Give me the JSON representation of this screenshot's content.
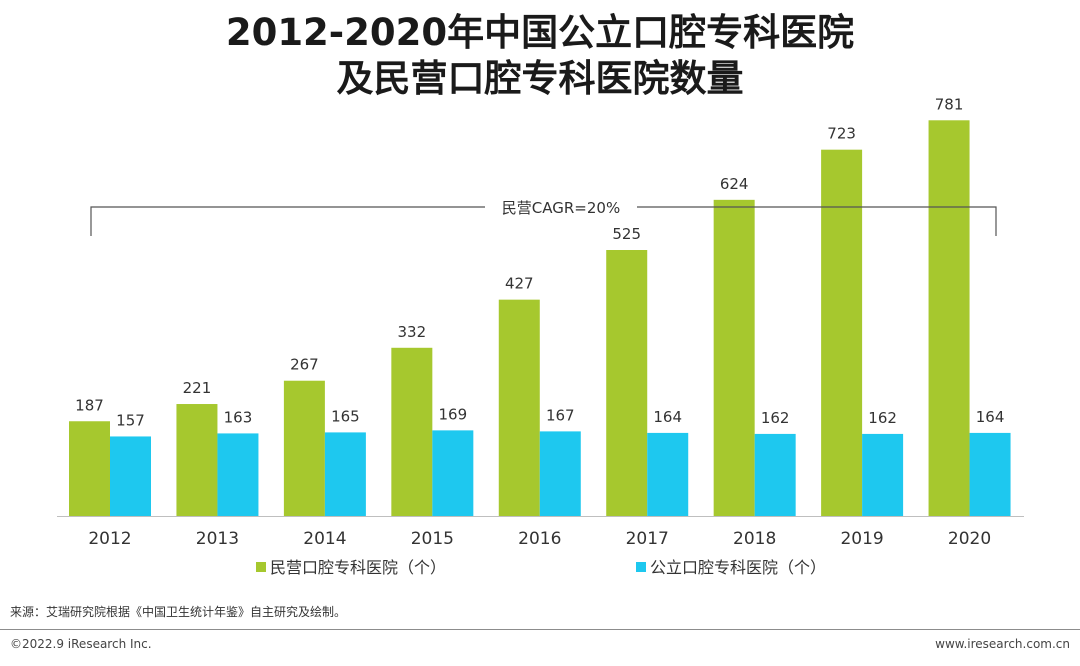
{
  "header": {
    "title_line1": "2012-2020年中国公立口腔专科医院",
    "title_line2": "及民营口腔专科医院数量"
  },
  "chart_data": {
    "type": "bar",
    "title": "2012-2020年中国公立口腔专科医院及民营口腔专科医院数量",
    "categories": [
      "2012",
      "2013",
      "2014",
      "2015",
      "2016",
      "2017",
      "2018",
      "2019",
      "2020"
    ],
    "series": [
      {
        "name": "民营口腔专科医院（个）",
        "color": "#a6c82e",
        "values": [
          187,
          221,
          267,
          332,
          427,
          525,
          624,
          723,
          781
        ]
      },
      {
        "name": "公立口腔专科医院（个）",
        "color": "#1ec8ef",
        "values": [
          157,
          163,
          165,
          169,
          167,
          164,
          162,
          162,
          164
        ]
      }
    ],
    "ylim": [
      0,
      900
    ],
    "annotation": "民营CAGR=20%",
    "legend_position": "bottom",
    "grid": false
  },
  "footer": {
    "source": "来源：艾瑞研究院根据《中国卫生统计年鉴》自主研究及绘制。",
    "copyright": "©2022.9 iResearch Inc.",
    "website": "www.iresearch.com.cn"
  }
}
